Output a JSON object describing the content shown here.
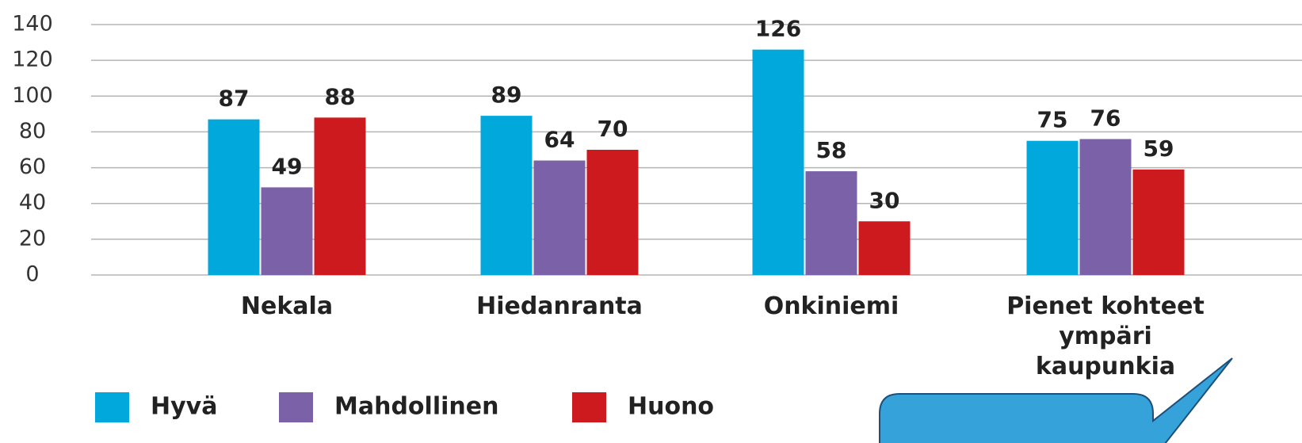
{
  "chart_data": {
    "type": "bar",
    "categories": [
      "Nekala",
      "Hiedanranta",
      "Onkiniemi",
      "Pienet kohteet ympäri kaupunkia"
    ],
    "series": [
      {
        "name": "Hyvä",
        "color": "#00a8db",
        "values": [
          87,
          89,
          126,
          75
        ]
      },
      {
        "name": "Mahdollinen",
        "color": "#7b62a8",
        "values": [
          49,
          64,
          58,
          76
        ]
      },
      {
        "name": "Huono",
        "color": "#cc1a1e",
        "values": [
          88,
          70,
          30,
          59
        ]
      }
    ],
    "ylim": [
      0,
      140
    ],
    "yticks": [
      0,
      20,
      40,
      60,
      80,
      100,
      120,
      140
    ],
    "grid": true,
    "legend": "bottom-left"
  }
}
